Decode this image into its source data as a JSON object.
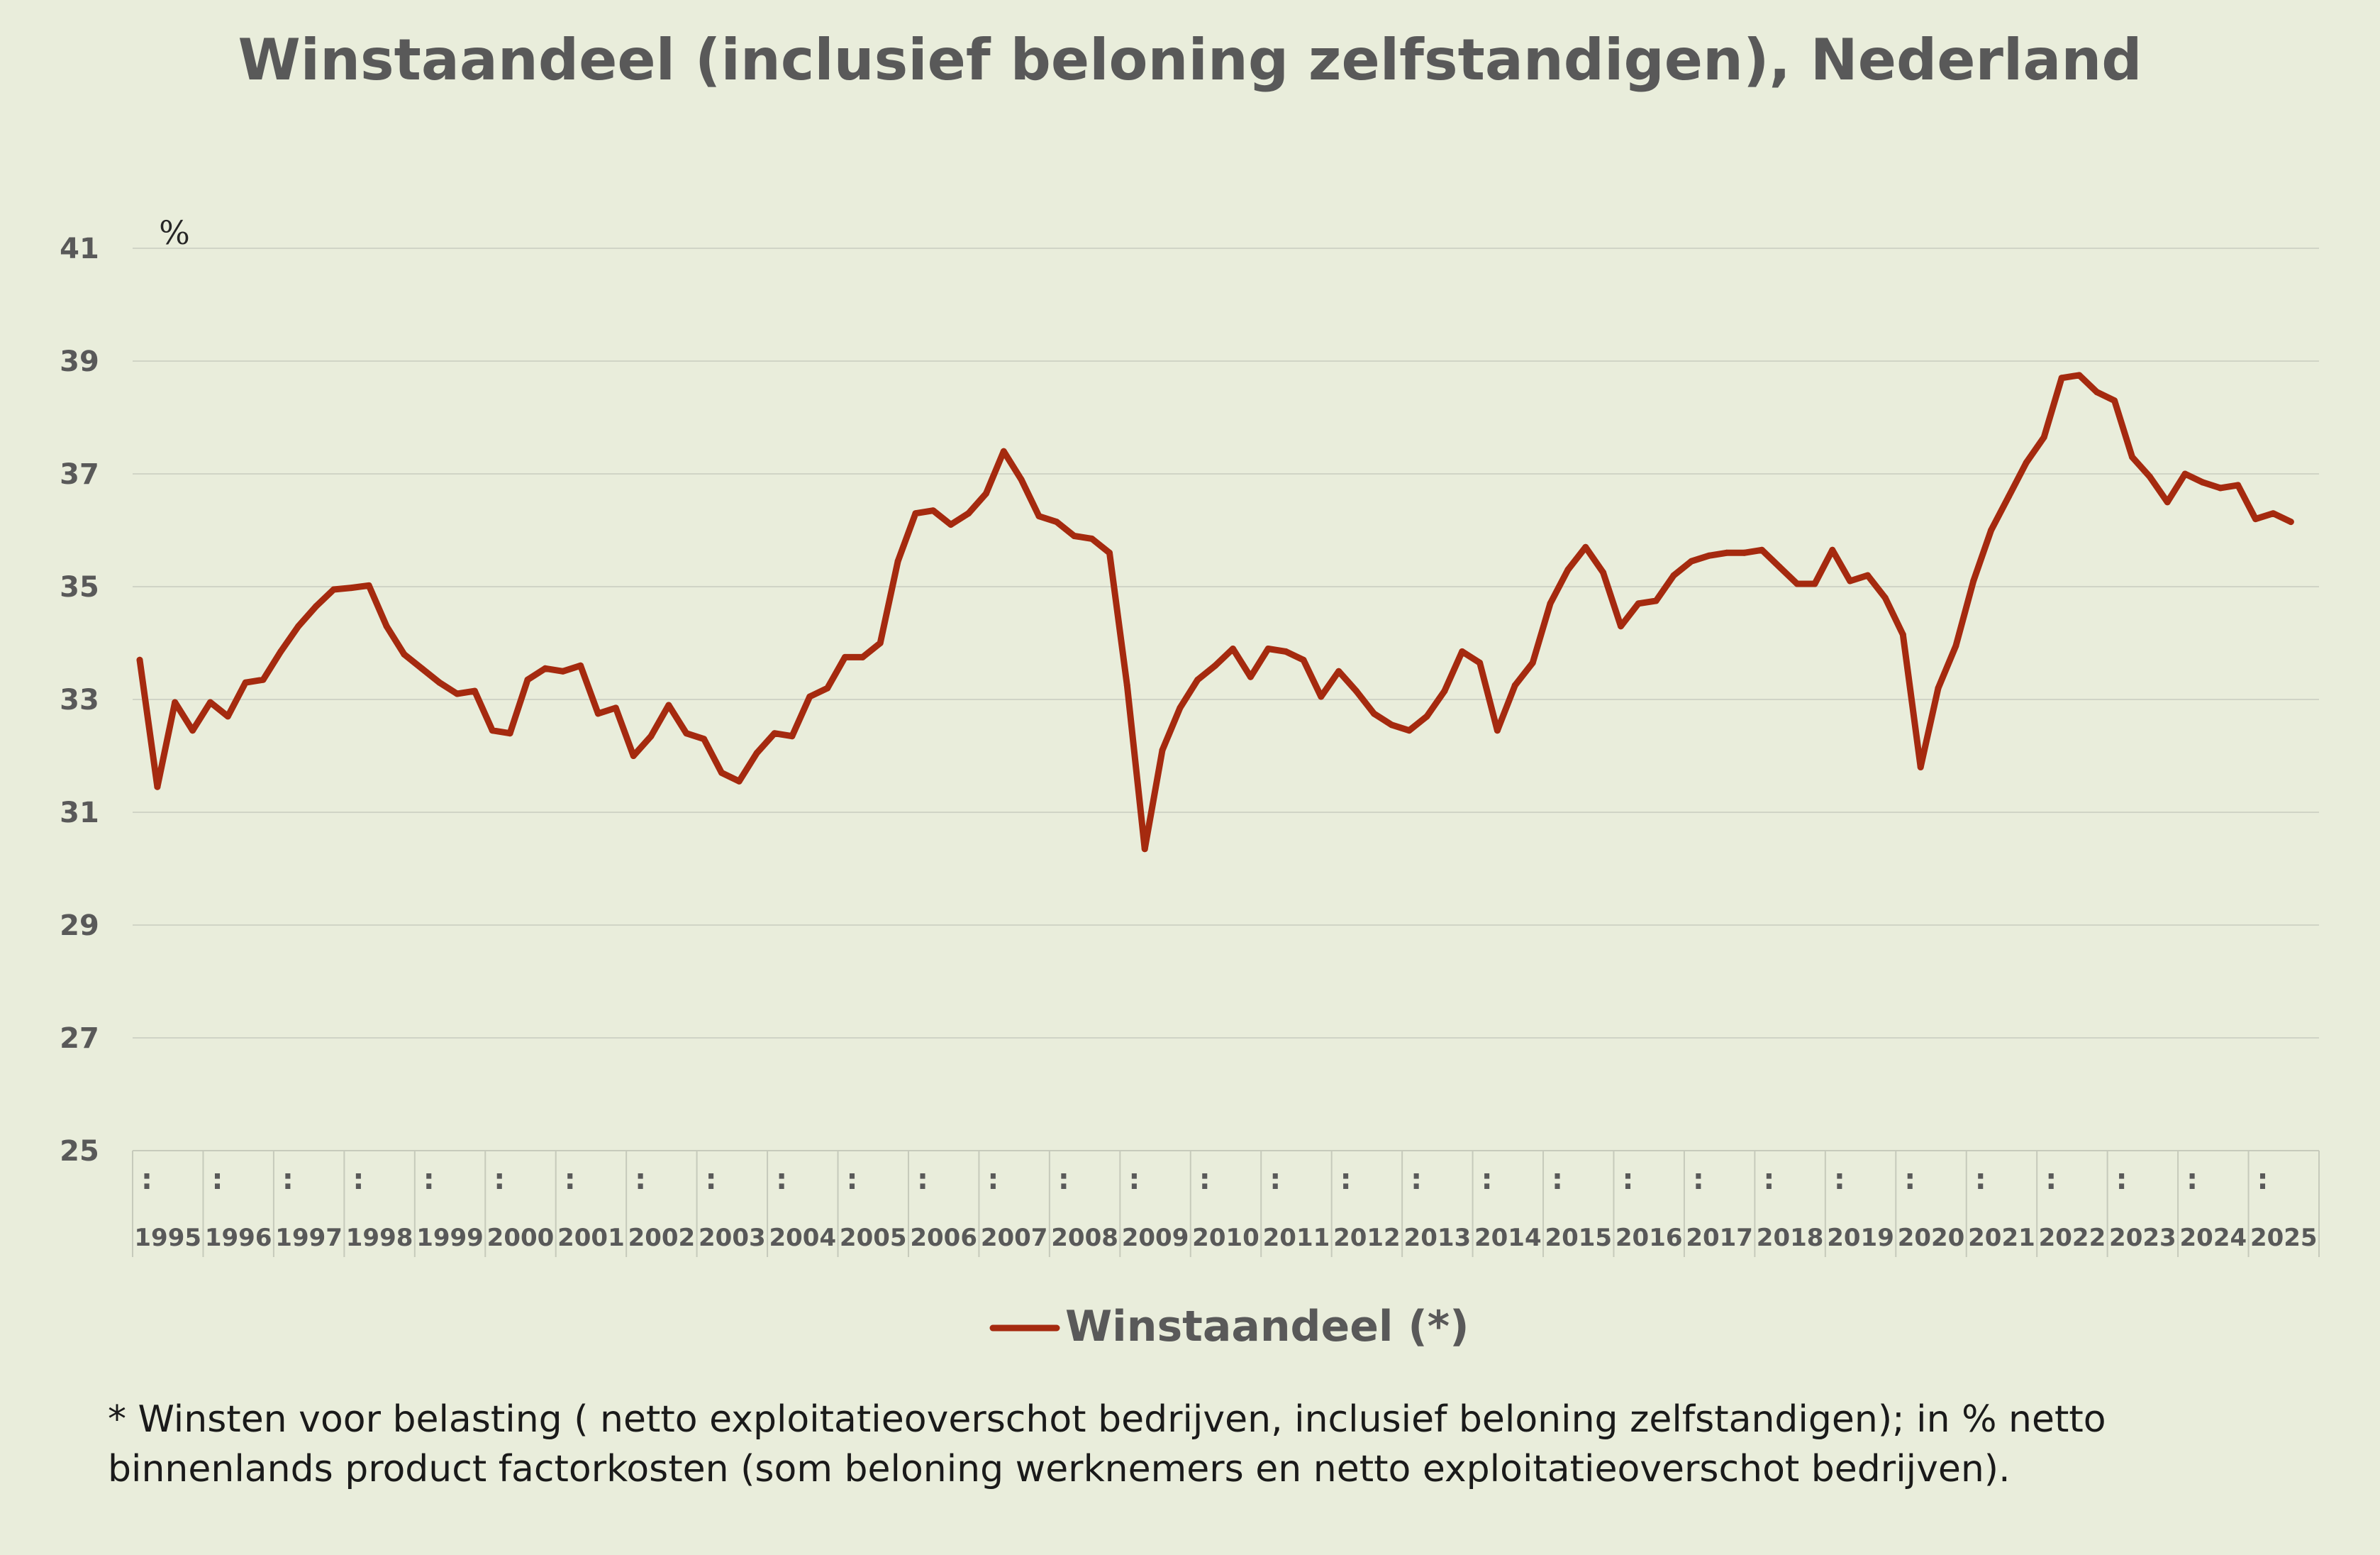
{
  "chart_data": {
    "type": "line",
    "title": "Winstaandeel (inclusief beloning zelfstandigen), Nederland",
    "ylabel": "%",
    "xlabel": "",
    "ylim": [
      25,
      41
    ],
    "yticks": [
      25,
      27,
      29,
      31,
      33,
      35,
      37,
      39,
      41
    ],
    "grid": true,
    "legend_position": "bottom",
    "years": [
      "1995",
      "1996",
      "1997",
      "1998",
      "1999",
      "2000",
      "2001",
      "2002",
      "2003",
      "2004",
      "2005",
      "2006",
      "2007",
      "2008",
      "2009",
      "2010",
      "2011",
      "2012",
      "2013",
      "2014",
      "2015",
      "2016",
      "2017",
      "2018",
      "2019",
      "2020",
      "2021",
      "2022",
      "2023",
      "2024",
      "2025"
    ],
    "quarter_marker": ":",
    "series": [
      {
        "name": "Winstaandeel (*)",
        "color": "#a52a0f",
        "values": [
          33.7,
          31.45,
          32.95,
          32.45,
          32.95,
          32.7,
          33.3,
          33.35,
          33.85,
          34.3,
          34.65,
          34.95,
          34.98,
          35.02,
          34.3,
          33.8,
          33.55,
          33.3,
          33.1,
          33.15,
          32.45,
          32.4,
          33.35,
          33.55,
          33.5,
          33.6,
          32.75,
          32.85,
          32.0,
          32.35,
          32.9,
          32.4,
          32.3,
          31.7,
          31.55,
          32.05,
          32.4,
          32.35,
          33.05,
          33.2,
          33.75,
          33.75,
          34.0,
          35.45,
          36.3,
          36.35,
          36.1,
          36.3,
          36.65,
          37.4,
          36.9,
          36.25,
          36.15,
          35.9,
          35.85,
          35.6,
          33.25,
          30.35,
          32.1,
          32.85,
          33.35,
          33.6,
          33.9,
          33.4,
          33.9,
          33.85,
          33.7,
          33.05,
          33.5,
          33.15,
          32.75,
          32.55,
          32.45,
          32.7,
          33.15,
          33.85,
          33.65,
          32.45,
          33.25,
          33.65,
          34.7,
          35.3,
          35.7,
          35.25,
          34.3,
          34.7,
          34.75,
          35.2,
          35.45,
          35.55,
          35.6,
          35.6,
          35.65,
          35.35,
          35.05,
          35.05,
          35.65,
          35.1,
          35.2,
          34.8,
          34.15,
          31.8,
          33.2,
          33.95,
          35.1,
          36.0,
          36.6,
          37.2,
          37.65,
          38.7,
          38.75,
          38.45,
          38.3,
          37.3,
          36.95,
          36.5,
          37.0,
          36.85,
          36.75,
          36.8,
          36.2,
          36.3,
          36.15
        ]
      }
    ]
  },
  "legend": {
    "label": "Winstaandeel (*)"
  },
  "footnote": {
    "line1": "* Winsten voor belasting ( netto exploitatieoverschot bedrijven, inclusief beloning zelfstandigen); in % netto",
    "line2": "binnenlands product factorkosten (som beloning werknemers en netto exploitatieoverschot bedrijven)."
  },
  "colors": {
    "background": "#e9eddb",
    "grid": "#d0d4c6",
    "line": "#a52a0f",
    "text": "#595959"
  }
}
